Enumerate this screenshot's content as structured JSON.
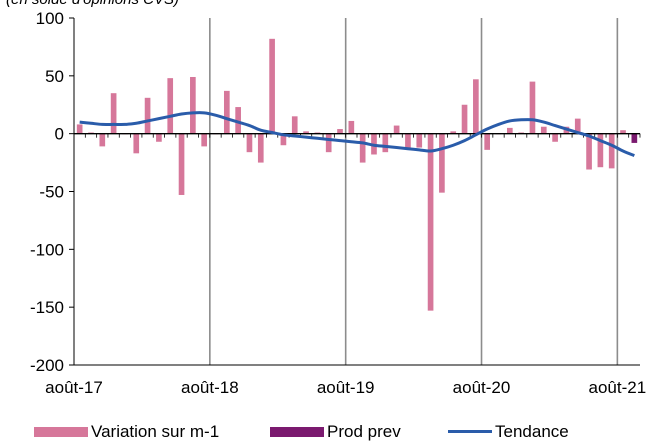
{
  "chart_data": {
    "type": "bar",
    "subtitle": "(en solde d'opinions CVS)",
    "xlabel": "",
    "ylabel": "",
    "ylim": [
      -200,
      100
    ],
    "yticks": [
      -200,
      -150,
      -100,
      -50,
      0,
      50,
      100
    ],
    "x_start": "2017-08",
    "x_labels": [
      "août-17",
      "août-18",
      "août-19",
      "août-20",
      "août-21"
    ],
    "grid": "vertical",
    "legend_position": "bottom",
    "series": [
      {
        "name": "Variation sur m-1",
        "type": "bar",
        "color": "#d6779a",
        "values": [
          8,
          1,
          -11,
          35,
          0,
          -17,
          31,
          -7,
          48,
          -53,
          49,
          -11,
          0,
          37,
          23,
          -16,
          -25,
          82,
          -10,
          15,
          2,
          1,
          -16,
          4,
          11,
          -25,
          -18,
          -16,
          7,
          -13,
          -12,
          -153,
          -51,
          2,
          25,
          47,
          -14,
          0,
          5,
          1,
          45,
          6,
          -7,
          6,
          13,
          -31,
          -29,
          -30,
          3
        ],
        "start_index": 0
      },
      {
        "name": "Prod prev",
        "type": "bar",
        "color": "#7b1a6f",
        "values": [
          -8
        ],
        "start_index": 49
      },
      {
        "name": "Tendance",
        "type": "line",
        "color": "#2a5caa",
        "values": [
          10,
          9,
          8,
          8,
          8,
          9,
          11,
          13,
          15,
          17,
          18,
          18,
          16,
          13,
          10,
          7,
          3,
          1,
          -1,
          -2,
          -3,
          -4,
          -5,
          -6,
          -7,
          -8,
          -10,
          -11,
          -12,
          -13,
          -14,
          -15,
          -13,
          -10,
          -6,
          -1,
          4,
          8,
          11,
          12,
          12,
          10,
          7,
          4,
          1,
          -2,
          -6,
          -10,
          -15,
          -19
        ],
        "start_index": 0
      }
    ]
  }
}
